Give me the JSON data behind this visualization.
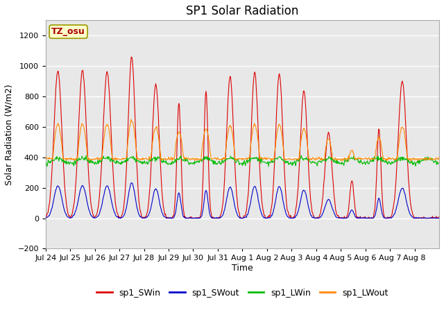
{
  "title": "SP1 Solar Radiation",
  "xlabel": "Time",
  "ylabel": "Solar Radiation (W/m2)",
  "ylim": [
    -200,
    1300
  ],
  "n_days": 16,
  "x_tick_labels": [
    "Jul 24",
    "Jul 25",
    "Jul 26",
    "Jul 27",
    "Jul 28",
    "Jul 29",
    "Jul 30",
    "Jul 31",
    "Aug 1",
    "Aug 2",
    "Aug 3",
    "Aug 4",
    "Aug 5",
    "Aug 6",
    "Aug 7",
    "Aug 8"
  ],
  "colors": {
    "sp1_SWin": "#dd0000",
    "sp1_SWout": "#0000cc",
    "sp1_LWin": "#00bb00",
    "sp1_LWout": "#ff8800"
  },
  "legend_labels": [
    "sp1_SWin",
    "sp1_SWout",
    "sp1_LWin",
    "sp1_LWout"
  ],
  "annotation_text": "TZ_osu",
  "annotation_color": "#aa0000",
  "annotation_bg": "#ffffcc",
  "annotation_border": "#999900",
  "plot_bg_color": "#e8e8e8",
  "fig_bg_color": "#ffffff",
  "grid_color": "#ffffff",
  "yticks": [
    -200,
    0,
    200,
    400,
    600,
    800,
    1000,
    1200
  ],
  "title_fontsize": 12,
  "axis_label_fontsize": 9,
  "tick_fontsize": 8,
  "legend_fontsize": 9,
  "sw_peak_vals": [
    970,
    970,
    960,
    1060,
    880,
    760,
    830,
    930,
    960,
    950,
    840,
    560,
    250,
    580,
    900,
    0
  ],
  "sw_centers": [
    0.5,
    0.5,
    0.5,
    0.5,
    0.48,
    0.42,
    0.52,
    0.5,
    0.5,
    0.5,
    0.5,
    0.5,
    0.45,
    0.55,
    0.5,
    0.5
  ],
  "sw_widths": [
    0.16,
    0.16,
    0.16,
    0.14,
    0.14,
    0.08,
    0.08,
    0.14,
    0.14,
    0.14,
    0.14,
    0.14,
    0.08,
    0.08,
    0.16,
    0.16
  ]
}
